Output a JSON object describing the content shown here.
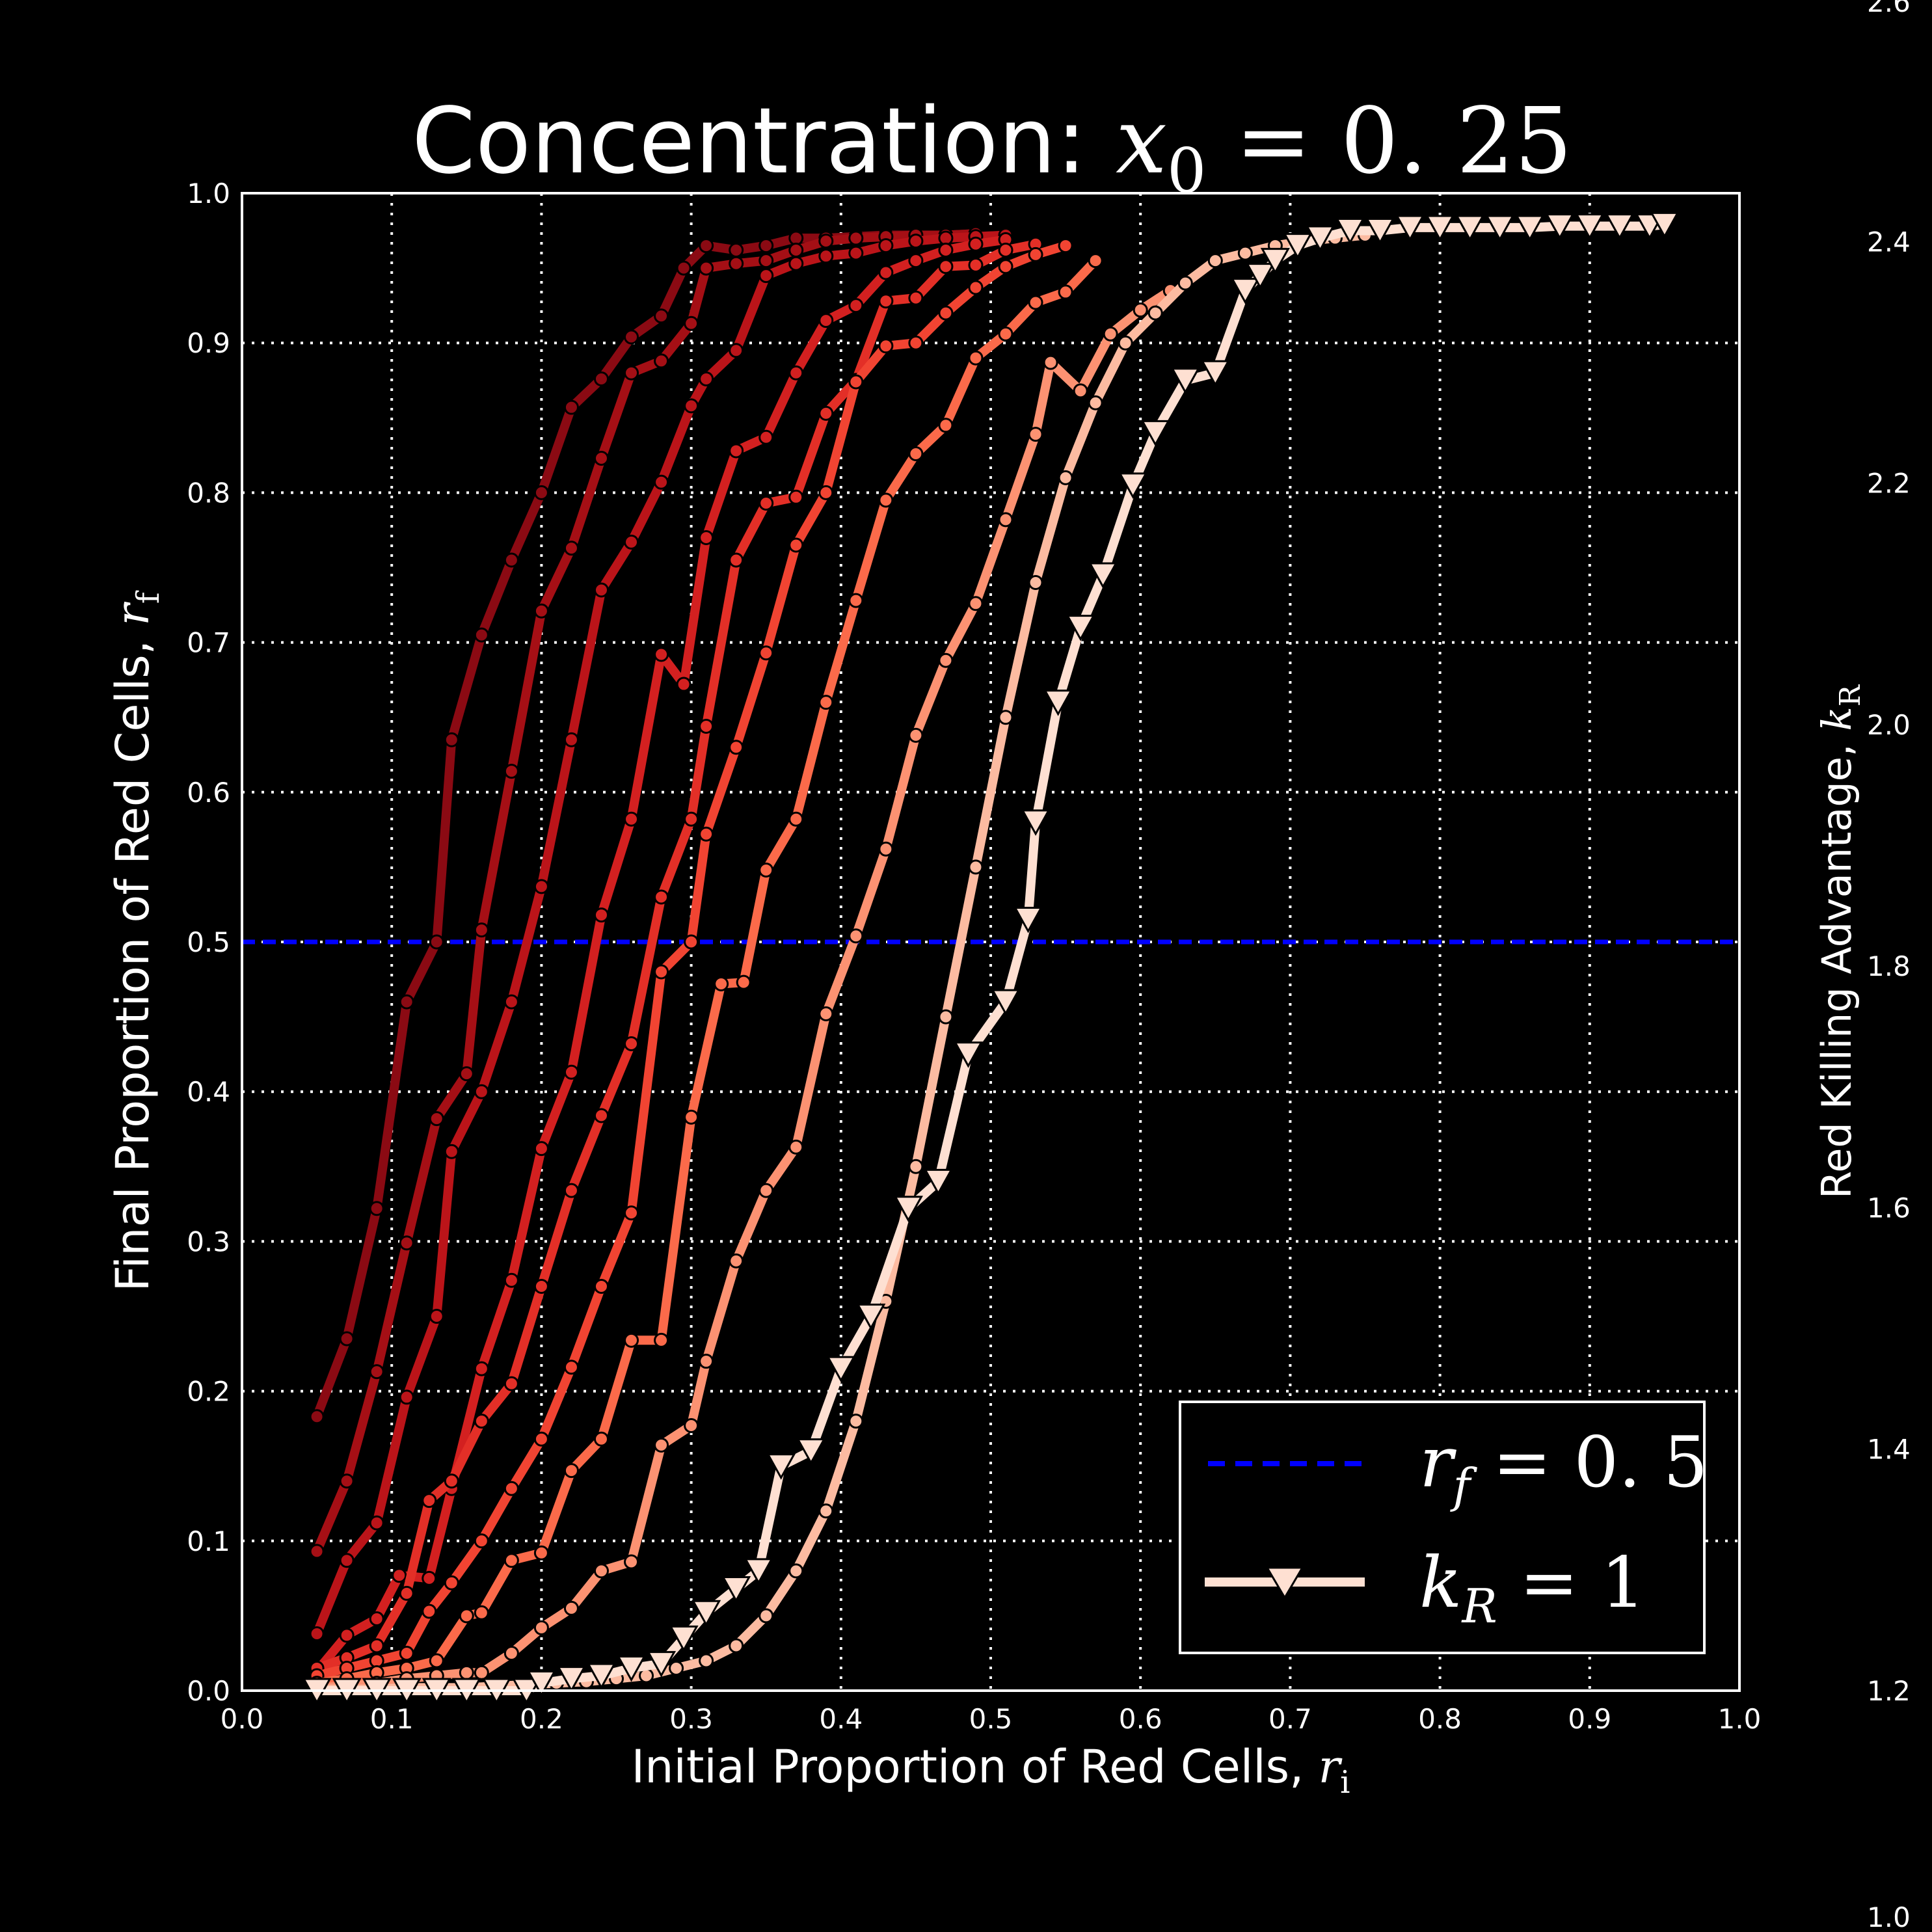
{
  "chart_data": {
    "type": "line",
    "title": {
      "text": "Concentration: ",
      "math_var": "x",
      "math_sub": "0",
      "math_rest": " = 0. 25"
    },
    "xlabel": {
      "text": "Initial Proportion of Red Cells, ",
      "math_var": "r",
      "math_sub": "i"
    },
    "ylabel": {
      "text": "Final Proportion of Red Cells, ",
      "math_var": "r",
      "math_sub": "f"
    },
    "y2label": {
      "text": "Red Killing Advantage, ",
      "math_var": "k",
      "math_sub": "R"
    },
    "xlim": [
      0.0,
      1.0
    ],
    "ylim": [
      0.0,
      1.0
    ],
    "xticks": [
      "0.0",
      "0.1",
      "0.2",
      "0.3",
      "0.4",
      "0.5",
      "0.6",
      "0.7",
      "0.8",
      "0.9",
      "1.0"
    ],
    "yticks": [
      "0.0",
      "0.1",
      "0.2",
      "0.3",
      "0.4",
      "0.5",
      "0.6",
      "0.7",
      "0.8",
      "0.9",
      "1.0"
    ],
    "colorbar_ticks": [
      "1.0",
      "1.2",
      "1.4",
      "1.6",
      "1.8",
      "2.0",
      "2.2",
      "2.4",
      "2.6"
    ],
    "colorbar_range": [
      1.0,
      2.6
    ],
    "grid": true,
    "legend_position": "lower-right",
    "legend": [
      {
        "var": "r",
        "sub": "f",
        "rest": " = 0. 5",
        "style": "dashed",
        "color": "#0000ff"
      },
      {
        "var": "k",
        "sub": "R",
        "rest": " = 1",
        "style": "solid-triangle",
        "color": "#fdd5c4"
      }
    ],
    "reference_line": {
      "y": 0.5,
      "color": "#0000ff",
      "style": "dashed"
    },
    "series": [
      {
        "color": "#8b0a13",
        "marker": "circle",
        "x": [
          0.05,
          0.07,
          0.09,
          0.11,
          0.13,
          0.14,
          0.16,
          0.18,
          0.2,
          0.22,
          0.24,
          0.26,
          0.28,
          0.295,
          0.31,
          0.33,
          0.35,
          0.37,
          0.39,
          0.41,
          0.43,
          0.45,
          0.47,
          0.49
        ],
        "y": [
          0.183,
          0.235,
          0.322,
          0.46,
          0.5,
          0.635,
          0.705,
          0.755,
          0.8,
          0.857,
          0.876,
          0.904,
          0.918,
          0.95,
          0.965,
          0.962,
          0.965,
          0.97,
          0.97,
          0.971,
          0.972,
          0.972,
          0.972,
          0.973
        ]
      },
      {
        "color": "#a50f15",
        "marker": "circle",
        "x": [
          0.05,
          0.07,
          0.09,
          0.11,
          0.13,
          0.15,
          0.16,
          0.18,
          0.2,
          0.22,
          0.24,
          0.26,
          0.28,
          0.3,
          0.31,
          0.33,
          0.35,
          0.37,
          0.39,
          0.41,
          0.43,
          0.45,
          0.47,
          0.49
        ],
        "y": [
          0.093,
          0.14,
          0.213,
          0.299,
          0.382,
          0.412,
          0.508,
          0.614,
          0.721,
          0.763,
          0.823,
          0.88,
          0.888,
          0.913,
          0.95,
          0.953,
          0.955,
          0.962,
          0.968,
          0.97,
          0.971,
          0.972,
          0.972,
          0.973
        ]
      },
      {
        "color": "#bb1419",
        "marker": "circle",
        "x": [
          0.05,
          0.07,
          0.09,
          0.11,
          0.13,
          0.14,
          0.16,
          0.18,
          0.2,
          0.22,
          0.24,
          0.26,
          0.28,
          0.3,
          0.31,
          0.33,
          0.35,
          0.37,
          0.39,
          0.41,
          0.43,
          0.45,
          0.47,
          0.49,
          0.51
        ],
        "y": [
          0.038,
          0.087,
          0.112,
          0.196,
          0.25,
          0.36,
          0.4,
          0.46,
          0.537,
          0.635,
          0.735,
          0.767,
          0.807,
          0.858,
          0.876,
          0.895,
          0.945,
          0.953,
          0.958,
          0.96,
          0.965,
          0.968,
          0.97,
          0.971,
          0.972
        ]
      },
      {
        "color": "#d32020",
        "marker": "circle",
        "x": [
          0.05,
          0.07,
          0.09,
          0.105,
          0.125,
          0.14,
          0.16,
          0.18,
          0.2,
          0.22,
          0.24,
          0.26,
          0.28,
          0.295,
          0.31,
          0.33,
          0.35,
          0.37,
          0.39,
          0.41,
          0.43,
          0.45,
          0.47,
          0.49,
          0.51
        ],
        "y": [
          0.013,
          0.037,
          0.048,
          0.077,
          0.075,
          0.135,
          0.215,
          0.274,
          0.362,
          0.413,
          0.518,
          0.582,
          0.692,
          0.672,
          0.77,
          0.828,
          0.837,
          0.88,
          0.915,
          0.925,
          0.947,
          0.955,
          0.962,
          0.966,
          0.969
        ]
      },
      {
        "color": "#e32f27",
        "marker": "circle",
        "x": [
          0.05,
          0.07,
          0.09,
          0.11,
          0.125,
          0.14,
          0.16,
          0.18,
          0.2,
          0.22,
          0.24,
          0.26,
          0.28,
          0.3,
          0.31,
          0.33,
          0.35,
          0.37,
          0.39,
          0.41,
          0.43,
          0.45,
          0.47,
          0.49,
          0.51,
          0.53
        ],
        "y": [
          0.015,
          0.022,
          0.03,
          0.065,
          0.127,
          0.14,
          0.18,
          0.205,
          0.27,
          0.334,
          0.384,
          0.432,
          0.53,
          0.582,
          0.644,
          0.755,
          0.793,
          0.797,
          0.853,
          0.875,
          0.928,
          0.93,
          0.951,
          0.952,
          0.962,
          0.966
        ]
      },
      {
        "color": "#f14432",
        "marker": "circle",
        "x": [
          0.05,
          0.07,
          0.09,
          0.11,
          0.125,
          0.14,
          0.16,
          0.18,
          0.2,
          0.22,
          0.24,
          0.26,
          0.28,
          0.3,
          0.31,
          0.33,
          0.35,
          0.37,
          0.39,
          0.41,
          0.43,
          0.45,
          0.47,
          0.49,
          0.51,
          0.53,
          0.55
        ],
        "y": [
          0.01,
          0.015,
          0.02,
          0.025,
          0.053,
          0.072,
          0.1,
          0.135,
          0.168,
          0.216,
          0.27,
          0.319,
          0.48,
          0.5,
          0.572,
          0.63,
          0.693,
          0.765,
          0.8,
          0.874,
          0.898,
          0.9,
          0.92,
          0.937,
          0.951,
          0.959,
          0.965
        ]
      },
      {
        "color": "#fb6a4a",
        "marker": "circle",
        "x": [
          0.05,
          0.07,
          0.09,
          0.11,
          0.13,
          0.15,
          0.16,
          0.18,
          0.2,
          0.22,
          0.24,
          0.26,
          0.28,
          0.3,
          0.32,
          0.335,
          0.35,
          0.37,
          0.39,
          0.41,
          0.43,
          0.45,
          0.47,
          0.49,
          0.51,
          0.53,
          0.55,
          0.57
        ],
        "y": [
          0.005,
          0.008,
          0.012,
          0.015,
          0.02,
          0.05,
          0.052,
          0.087,
          0.092,
          0.147,
          0.168,
          0.234,
          0.234,
          0.383,
          0.472,
          0.473,
          0.548,
          0.582,
          0.66,
          0.728,
          0.795,
          0.826,
          0.845,
          0.89,
          0.906,
          0.927,
          0.934,
          0.955
        ]
      },
      {
        "color": "#fc9272",
        "marker": "circle",
        "x": [
          0.05,
          0.07,
          0.09,
          0.11,
          0.13,
          0.15,
          0.16,
          0.18,
          0.2,
          0.22,
          0.24,
          0.26,
          0.28,
          0.3,
          0.31,
          0.33,
          0.35,
          0.37,
          0.39,
          0.41,
          0.43,
          0.45,
          0.47,
          0.49,
          0.51,
          0.53,
          0.54,
          0.56,
          0.58,
          0.6,
          0.62
        ],
        "y": [
          0.002,
          0.003,
          0.005,
          0.008,
          0.01,
          0.012,
          0.012,
          0.025,
          0.042,
          0.055,
          0.08,
          0.086,
          0.164,
          0.177,
          0.22,
          0.287,
          0.334,
          0.363,
          0.452,
          0.504,
          0.562,
          0.638,
          0.688,
          0.726,
          0.782,
          0.839,
          0.887,
          0.868,
          0.906,
          0.922,
          0.935
        ]
      },
      {
        "color": "#fcbba1",
        "marker": "circle",
        "x": [
          0.05,
          0.07,
          0.09,
          0.11,
          0.13,
          0.15,
          0.17,
          0.19,
          0.21,
          0.23,
          0.25,
          0.27,
          0.29,
          0.31,
          0.33,
          0.35,
          0.37,
          0.39,
          0.41,
          0.43,
          0.45,
          0.47,
          0.49,
          0.51,
          0.53,
          0.55,
          0.57,
          0.59,
          0.61,
          0.63,
          0.65,
          0.67,
          0.69,
          0.71,
          0.73,
          0.75
        ],
        "y": [
          0.001,
          0.001,
          0.001,
          0.002,
          0.002,
          0.002,
          0.003,
          0.004,
          0.005,
          0.006,
          0.008,
          0.01,
          0.015,
          0.02,
          0.03,
          0.05,
          0.08,
          0.12,
          0.18,
          0.26,
          0.35,
          0.45,
          0.55,
          0.65,
          0.74,
          0.81,
          0.86,
          0.9,
          0.92,
          0.94,
          0.955,
          0.96,
          0.965,
          0.968,
          0.97,
          0.972
        ]
      },
      {
        "color": "#fee0d2",
        "marker": "triangle",
        "x": [
          0.05,
          0.07,
          0.09,
          0.11,
          0.13,
          0.15,
          0.17,
          0.19,
          0.2,
          0.22,
          0.24,
          0.26,
          0.28,
          0.295,
          0.31,
          0.33,
          0.345,
          0.36,
          0.38,
          0.4,
          0.42,
          0.445,
          0.465,
          0.485,
          0.51,
          0.525,
          0.53,
          0.545,
          0.56,
          0.575,
          0.595,
          0.61,
          0.63,
          0.65,
          0.67,
          0.68,
          0.69,
          0.705,
          0.72,
          0.74,
          0.76,
          0.78,
          0.8,
          0.82,
          0.84,
          0.86,
          0.88,
          0.9,
          0.92,
          0.94,
          0.95
        ],
        "y": [
          0.0,
          0.0,
          0.0,
          0.0,
          0.0,
          0.0,
          0.0,
          0.0,
          0.005,
          0.008,
          0.01,
          0.015,
          0.018,
          0.035,
          0.052,
          0.068,
          0.08,
          0.15,
          0.16,
          0.215,
          0.25,
          0.322,
          0.34,
          0.425,
          0.46,
          0.515,
          0.58,
          0.66,
          0.71,
          0.745,
          0.805,
          0.84,
          0.875,
          0.88,
          0.935,
          0.945,
          0.955,
          0.965,
          0.97,
          0.975,
          0.975,
          0.977,
          0.977,
          0.977,
          0.977,
          0.977,
          0.978,
          0.978,
          0.978,
          0.978,
          0.979
        ]
      }
    ]
  }
}
